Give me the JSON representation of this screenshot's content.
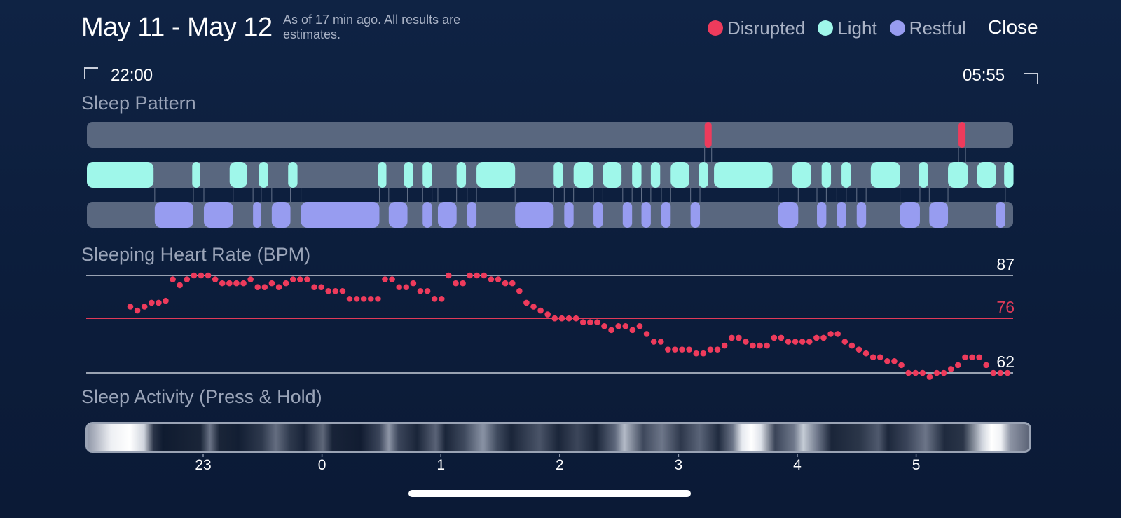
{
  "header": {
    "title": "May 11 - May 12",
    "note": "As of 17 min ago. All results are estimates.",
    "close_label": "Close"
  },
  "legend": [
    {
      "label": "Disrupted",
      "color": "#ee3b5c"
    },
    {
      "label": "Light",
      "color": "#9ff7ea"
    },
    {
      "label": "Restful",
      "color": "#979cf0"
    }
  ],
  "time_range": {
    "start": "22:00",
    "end": "05:55"
  },
  "sections": {
    "pattern_title": "Sleep Pattern",
    "hr_title": "Sleeping Heart Rate (BPM)",
    "activity_title": "Sleep Activity (Press & Hold)"
  },
  "colors": {
    "disrupted": "#ee3b5c",
    "light": "#9ff7ea",
    "restful": "#979cf0",
    "track": "#59677f",
    "hr_dot": "#ee3b5c",
    "ref_line": "#c8ced9",
    "avg_line": "#e03a58"
  },
  "chart_data": [
    {
      "type": "timeline",
      "title": "Sleep Pattern",
      "x_range_hours": [
        22.0,
        29.9167
      ],
      "rows": [
        {
          "name": "Disrupted",
          "segments": [
            [
              27.28,
              27.34
            ],
            [
              29.45,
              29.51
            ]
          ]
        },
        {
          "name": "Light",
          "segments": [
            [
              22.0,
              22.57
            ],
            [
              22.9,
              22.97
            ],
            [
              23.22,
              23.37
            ],
            [
              23.47,
              23.55
            ],
            [
              23.72,
              23.8
            ],
            [
              24.49,
              24.56
            ],
            [
              24.71,
              24.79
            ],
            [
              24.87,
              24.95
            ],
            [
              25.16,
              25.24
            ],
            [
              25.33,
              25.66
            ],
            [
              25.99,
              26.07
            ],
            [
              26.16,
              26.33
            ],
            [
              26.41,
              26.57
            ],
            [
              26.66,
              26.74
            ],
            [
              26.82,
              26.9
            ],
            [
              26.99,
              27.15
            ],
            [
              27.23,
              27.31
            ],
            [
              27.36,
              27.86
            ],
            [
              28.03,
              28.19
            ],
            [
              28.28,
              28.36
            ],
            [
              28.45,
              28.53
            ],
            [
              28.7,
              28.95
            ],
            [
              29.11,
              29.19
            ],
            [
              29.36,
              29.53
            ],
            [
              29.61,
              29.77
            ],
            [
              29.84,
              29.92
            ]
          ]
        },
        {
          "name": "Restful",
          "segments": [
            [
              22.58,
              22.91
            ],
            [
              23.0,
              23.25
            ],
            [
              23.42,
              23.49
            ],
            [
              23.58,
              23.74
            ],
            [
              23.83,
              24.5
            ],
            [
              24.58,
              24.74
            ],
            [
              24.87,
              24.95
            ],
            [
              25.0,
              25.16
            ],
            [
              25.25,
              25.33
            ],
            [
              25.66,
              25.99
            ],
            [
              26.08,
              26.16
            ],
            [
              26.33,
              26.41
            ],
            [
              26.58,
              26.66
            ],
            [
              26.74,
              26.82
            ],
            [
              26.91,
              26.99
            ],
            [
              27.16,
              27.24
            ],
            [
              27.91,
              28.08
            ],
            [
              28.24,
              28.32
            ],
            [
              28.41,
              28.49
            ],
            [
              28.58,
              28.66
            ],
            [
              28.95,
              29.12
            ],
            [
              29.2,
              29.36
            ],
            [
              29.77,
              29.85
            ]
          ]
        }
      ]
    },
    {
      "type": "scatter",
      "title": "Sleeping Heart Rate (BPM)",
      "ylabel": "BPM",
      "ylim": [
        62,
        87
      ],
      "reference_lines": [
        {
          "value": 87,
          "label": "87"
        },
        {
          "value": 76,
          "label": "76"
        },
        {
          "value": 62,
          "label": "62"
        }
      ],
      "interval_minutes": 5,
      "x_start_hour": 22.33,
      "values": [
        79,
        78,
        79,
        80,
        80,
        80.5,
        86,
        84.5,
        86,
        87,
        87,
        87,
        86,
        85,
        85,
        85,
        85,
        86,
        84,
        84,
        85,
        84,
        85,
        86,
        86,
        86,
        84,
        84,
        83,
        83,
        83,
        81,
        81,
        81,
        81,
        81,
        86,
        86,
        84,
        84,
        85,
        83,
        83,
        81,
        81,
        87,
        85,
        85,
        87,
        87,
        87,
        86,
        86,
        85,
        85,
        83,
        80,
        79,
        78,
        77,
        76,
        76,
        76,
        76,
        75,
        75,
        75,
        74,
        73,
        74,
        74,
        73,
        74,
        72,
        70,
        70,
        68,
        68,
        68,
        68,
        67,
        67,
        68,
        68,
        69,
        71,
        71,
        70,
        69,
        69,
        69,
        71,
        71,
        70,
        70,
        70,
        70,
        71,
        71,
        72,
        72,
        70,
        69,
        68,
        67,
        66,
        66,
        65,
        65,
        64,
        62,
        62,
        62,
        61,
        62,
        62,
        63,
        64,
        66,
        66,
        66,
        64,
        62,
        62,
        62
      ]
    },
    {
      "type": "heatmap",
      "title": "Sleep Activity (Press & Hold)",
      "x_ticks": [
        "23",
        "0",
        "1",
        "2",
        "3",
        "4",
        "5"
      ]
    }
  ]
}
